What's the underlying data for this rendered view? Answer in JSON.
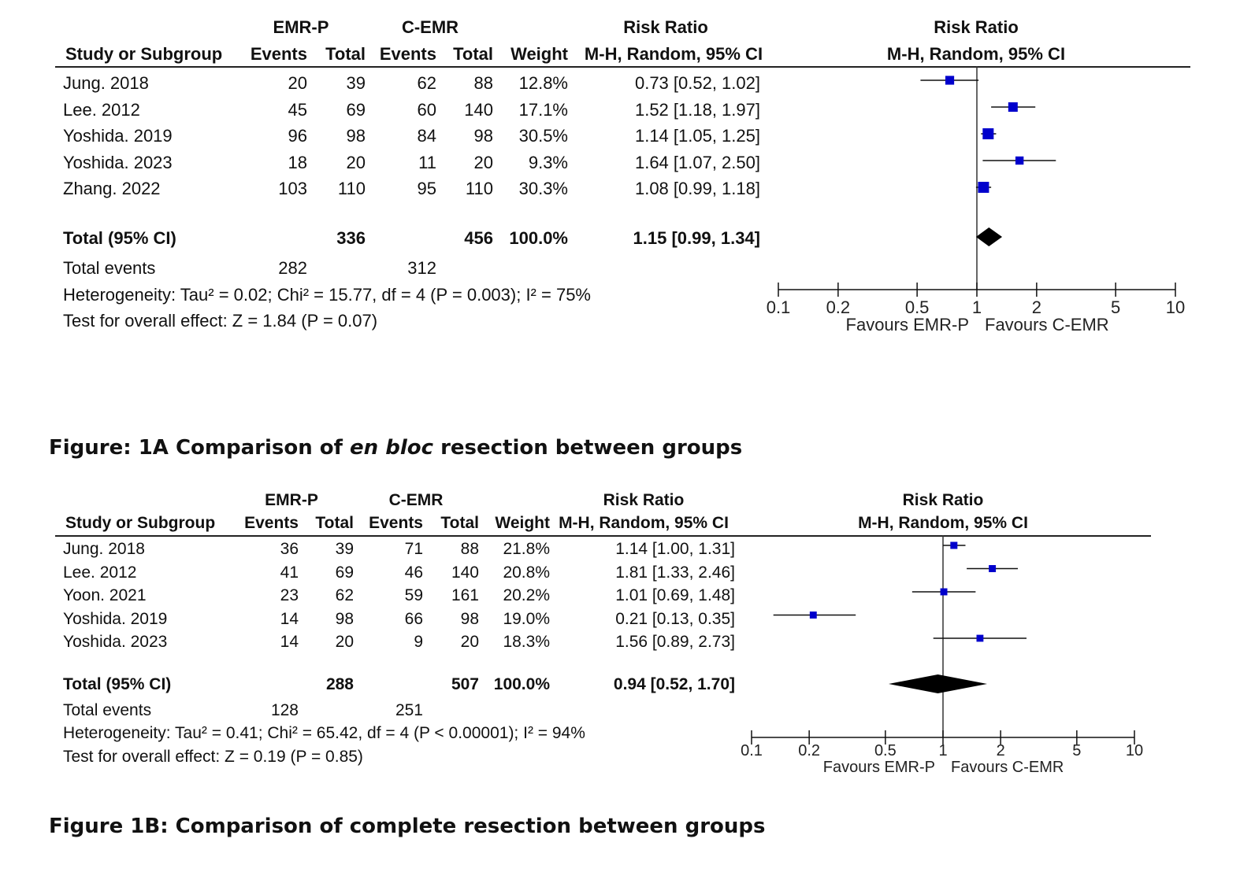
{
  "figures": [
    {
      "caption_prefix": "Figure: 1A Comparison of ",
      "caption_em": "en bloc",
      "caption_suffix": " resection between groups",
      "headers": {
        "group1": "EMR-P",
        "group2": "C-EMR",
        "study": "Study or Subgroup",
        "events": "Events",
        "total": "Total",
        "weight": "Weight",
        "rr": "Risk Ratio",
        "rr_method": "M-H, Random, 95% CI"
      },
      "rows": [
        {
          "study": "Jung. 2018",
          "e1": "20",
          "t1": "39",
          "e2": "62",
          "t2": "88",
          "weight": "12.8%",
          "rr": "0.73 [0.52, 1.02]"
        },
        {
          "study": "Lee. 2012",
          "e1": "45",
          "t1": "69",
          "e2": "60",
          "t2": "140",
          "weight": "17.1%",
          "rr": "1.52 [1.18, 1.97]"
        },
        {
          "study": "Yoshida. 2019",
          "e1": "96",
          "t1": "98",
          "e2": "84",
          "t2": "98",
          "weight": "30.5%",
          "rr": "1.14 [1.05, 1.25]"
        },
        {
          "study": "Yoshida. 2023",
          "e1": "18",
          "t1": "20",
          "e2": "11",
          "t2": "20",
          "weight": "9.3%",
          "rr": "1.64 [1.07, 2.50]"
        },
        {
          "study": "Zhang. 2022",
          "e1": "103",
          "t1": "110",
          "e2": "95",
          "t2": "110",
          "weight": "30.3%",
          "rr": "1.08 [0.99, 1.18]"
        }
      ],
      "total": {
        "label": "Total (95% CI)",
        "t1": "336",
        "t2": "456",
        "weight": "100.0%",
        "rr": "1.15 [0.99, 1.34]"
      },
      "total_events": {
        "label": "Total events",
        "e1": "282",
        "e2": "312"
      },
      "heterogeneity": "Heterogeneity: Tau² = 0.02; Chi² = 15.77, df = 4 (P = 0.003); I² = 75%",
      "overall": "Test for overall effect: Z = 1.84 (P = 0.07)",
      "favours_left": "Favours EMR-P",
      "favours_right": "Favours C-EMR"
    },
    {
      "caption_prefix": "Figure 1B: Comparison of complete resection between groups",
      "caption_em": "",
      "caption_suffix": "",
      "headers": {
        "group1": "EMR-P",
        "group2": "C-EMR",
        "study": "Study or Subgroup",
        "events": "Events",
        "total": "Total",
        "weight": "Weight",
        "rr": "Risk Ratio",
        "rr_method": "M-H, Random, 95% CI"
      },
      "rows": [
        {
          "study": "Jung. 2018",
          "e1": "36",
          "t1": "39",
          "e2": "71",
          "t2": "88",
          "weight": "21.8%",
          "rr": "1.14 [1.00, 1.31]"
        },
        {
          "study": "Lee. 2012",
          "e1": "41",
          "t1": "69",
          "e2": "46",
          "t2": "140",
          "weight": "20.8%",
          "rr": "1.81 [1.33, 2.46]"
        },
        {
          "study": "Yoon. 2021",
          "e1": "23",
          "t1": "62",
          "e2": "59",
          "t2": "161",
          "weight": "20.2%",
          "rr": "1.01 [0.69, 1.48]"
        },
        {
          "study": "Yoshida. 2019",
          "e1": "14",
          "t1": "98",
          "e2": "66",
          "t2": "98",
          "weight": "19.0%",
          "rr": "0.21 [0.13, 0.35]"
        },
        {
          "study": "Yoshida. 2023",
          "e1": "14",
          "t1": "20",
          "e2": "9",
          "t2": "20",
          "weight": "18.3%",
          "rr": "1.56 [0.89, 2.73]"
        }
      ],
      "total": {
        "label": "Total (95% CI)",
        "t1": "288",
        "t2": "507",
        "weight": "100.0%",
        "rr": "0.94 [0.52, 1.70]"
      },
      "total_events": {
        "label": "Total events",
        "e1": "128",
        "e2": "251"
      },
      "heterogeneity": "Heterogeneity: Tau² = 0.41; Chi² = 65.42, df = 4 (P < 0.00001); I² = 94%",
      "overall": "Test for overall effect: Z = 0.19 (P = 0.85)",
      "favours_left": "Favours EMR-P",
      "favours_right": "Favours C-EMR"
    }
  ],
  "chart_data": [
    {
      "type": "forest",
      "scale": "log",
      "xlim": [
        0.1,
        10
      ],
      "ticks": [
        0.1,
        0.2,
        0.5,
        1,
        2,
        5,
        10
      ],
      "tick_labels": [
        "0.1",
        "0.2",
        "0.5",
        "1",
        "2",
        "5",
        "10"
      ],
      "header": "Risk Ratio",
      "subheader": "M-H, Random, 95% CI",
      "xlabel_left": "Favours EMR-P",
      "xlabel_right": "Favours C-EMR",
      "marker_color": "#0000cc",
      "studies": [
        {
          "label": "Jung. 2018",
          "rr": 0.73,
          "lo": 0.52,
          "hi": 1.02,
          "weight": 12.8
        },
        {
          "label": "Lee. 2012",
          "rr": 1.52,
          "lo": 1.18,
          "hi": 1.97,
          "weight": 17.1
        },
        {
          "label": "Yoshida. 2019",
          "rr": 1.14,
          "lo": 1.05,
          "hi": 1.25,
          "weight": 30.5
        },
        {
          "label": "Yoshida. 2023",
          "rr": 1.64,
          "lo": 1.07,
          "hi": 2.5,
          "weight": 9.3
        },
        {
          "label": "Zhang. 2022",
          "rr": 1.08,
          "lo": 0.99,
          "hi": 1.18,
          "weight": 30.3
        }
      ],
      "pooled": {
        "rr": 1.15,
        "lo": 0.99,
        "hi": 1.34
      }
    },
    {
      "type": "forest",
      "scale": "log",
      "xlim": [
        0.1,
        10
      ],
      "ticks": [
        0.1,
        0.2,
        0.5,
        1,
        2,
        5,
        10
      ],
      "tick_labels": [
        "0.1",
        "0.2",
        "0.5",
        "1",
        "2",
        "5",
        "10"
      ],
      "header": "Risk Ratio",
      "subheader": "M-H, Random, 95% CI",
      "xlabel_left": "Favours EMR-P",
      "xlabel_right": "Favours C-EMR",
      "marker_color": "#0000cc",
      "studies": [
        {
          "label": "Jung. 2018",
          "rr": 1.14,
          "lo": 1.0,
          "hi": 1.31,
          "weight": 21.8
        },
        {
          "label": "Lee. 2012",
          "rr": 1.81,
          "lo": 1.33,
          "hi": 2.46,
          "weight": 20.8
        },
        {
          "label": "Yoon. 2021",
          "rr": 1.01,
          "lo": 0.69,
          "hi": 1.48,
          "weight": 20.2
        },
        {
          "label": "Yoshida. 2019",
          "rr": 0.21,
          "lo": 0.13,
          "hi": 0.35,
          "weight": 19.0
        },
        {
          "label": "Yoshida. 2023",
          "rr": 1.56,
          "lo": 0.89,
          "hi": 2.73,
          "weight": 18.3
        }
      ],
      "pooled": {
        "rr": 0.94,
        "lo": 0.52,
        "hi": 1.7
      }
    }
  ]
}
